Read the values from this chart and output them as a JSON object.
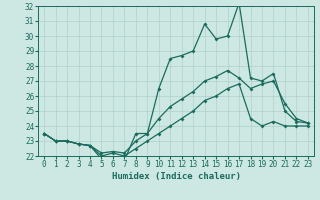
{
  "title": "",
  "xlabel": "Humidex (Indice chaleur)",
  "x": [
    0,
    1,
    2,
    3,
    4,
    5,
    6,
    7,
    8,
    9,
    10,
    11,
    12,
    13,
    14,
    15,
    16,
    17,
    18,
    19,
    20,
    21,
    22,
    23
  ],
  "line_max": [
    23.5,
    23.0,
    23.0,
    22.8,
    22.7,
    21.8,
    21.7,
    21.7,
    23.5,
    23.5,
    26.5,
    28.5,
    28.7,
    29.0,
    30.8,
    29.8,
    30.0,
    32.2,
    27.2,
    27.0,
    27.5,
    25.0,
    24.3,
    24.2
  ],
  "line_mean": [
    23.5,
    23.0,
    23.0,
    22.8,
    22.7,
    22.2,
    22.3,
    22.2,
    23.0,
    23.5,
    24.5,
    25.3,
    25.8,
    26.3,
    27.0,
    27.3,
    27.7,
    27.2,
    26.5,
    26.8,
    27.0,
    25.5,
    24.5,
    24.2
  ],
  "line_min": [
    23.5,
    23.0,
    23.0,
    22.8,
    22.7,
    22.0,
    22.2,
    22.0,
    22.5,
    23.0,
    23.5,
    24.0,
    24.5,
    25.0,
    25.7,
    26.0,
    26.5,
    26.8,
    24.5,
    24.0,
    24.3,
    24.0,
    24.0,
    24.0
  ],
  "ylim": [
    22,
    32
  ],
  "yticks": [
    22,
    23,
    24,
    25,
    26,
    27,
    28,
    29,
    30,
    31,
    32
  ],
  "xlim": [
    -0.5,
    23.5
  ],
  "bg_color": "#cde8e2",
  "line_color": "#1a6b5e",
  "grid_color": "#afd0ca",
  "tick_fontsize": 5.5,
  "label_fontsize": 6.5
}
